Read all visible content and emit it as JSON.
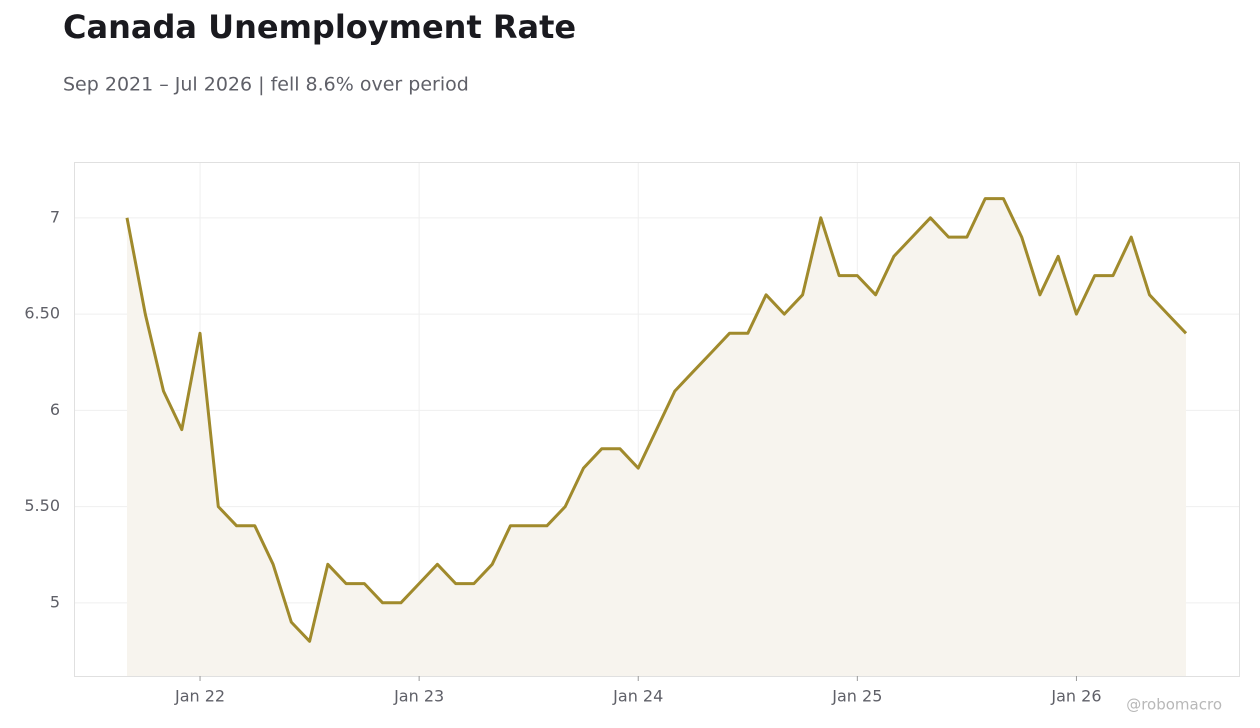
{
  "chart_data": {
    "type": "line",
    "title": "Canada Unemployment Rate",
    "subtitle": "Sep 2021 – Jul 2026 | fell 8.6% over period",
    "watermark": "@robomacro",
    "x": [
      "2021-09",
      "2021-10",
      "2021-11",
      "2021-12",
      "2022-01",
      "2022-02",
      "2022-03",
      "2022-04",
      "2022-05",
      "2022-06",
      "2022-07",
      "2022-08",
      "2022-09",
      "2022-10",
      "2022-11",
      "2022-12",
      "2023-01",
      "2023-02",
      "2023-03",
      "2023-04",
      "2023-05",
      "2023-06",
      "2023-07",
      "2023-08",
      "2023-09",
      "2023-10",
      "2023-11",
      "2023-12",
      "2024-01",
      "2024-02",
      "2024-03",
      "2024-04",
      "2024-05",
      "2024-06",
      "2024-07",
      "2024-08",
      "2024-09",
      "2024-10",
      "2024-11",
      "2024-12",
      "2025-01",
      "2025-02",
      "2025-03",
      "2025-04",
      "2025-05",
      "2025-06",
      "2025-07",
      "2025-08",
      "2025-09",
      "2025-10",
      "2025-11",
      "2025-12",
      "2026-01",
      "2026-02",
      "2026-03",
      "2026-04",
      "2026-05",
      "2026-06",
      "2026-07"
    ],
    "series": [
      {
        "name": "Unemployment Rate",
        "color": "#a08a2c",
        "fill": "#f7f4ee",
        "values": [
          7.0,
          6.5,
          6.1,
          5.9,
          6.4,
          5.5,
          5.4,
          5.4,
          5.2,
          4.9,
          4.8,
          5.2,
          5.1,
          5.1,
          5.0,
          5.0,
          5.1,
          5.2,
          5.1,
          5.1,
          5.2,
          5.4,
          5.4,
          5.4,
          5.5,
          5.7,
          5.8,
          5.8,
          5.7,
          5.9,
          6.1,
          6.2,
          6.3,
          6.4,
          6.4,
          6.6,
          6.5,
          6.6,
          7.0,
          6.7,
          6.7,
          6.6,
          6.8,
          6.9,
          7.0,
          6.9,
          6.9,
          7.1,
          7.1,
          6.9,
          6.6,
          6.8,
          6.5,
          6.7,
          6.7,
          6.9,
          6.6,
          6.5,
          6.4
        ]
      }
    ],
    "ylim": [
      4.62,
      7.29
    ],
    "yticks": [
      5,
      {
        "value": 5.5,
        "label": "5.50"
      },
      6,
      {
        "value": 6.5,
        "label": "6.50"
      },
      7
    ],
    "xticks": [
      {
        "value": "2022-01",
        "label": "Jan 22"
      },
      {
        "value": "2023-01",
        "label": "Jan 23"
      },
      {
        "value": "2024-01",
        "label": "Jan 24"
      },
      {
        "value": "2025-01",
        "label": "Jan 25"
      },
      {
        "value": "2026-01",
        "label": "Jan 26"
      }
    ],
    "grid": true
  }
}
